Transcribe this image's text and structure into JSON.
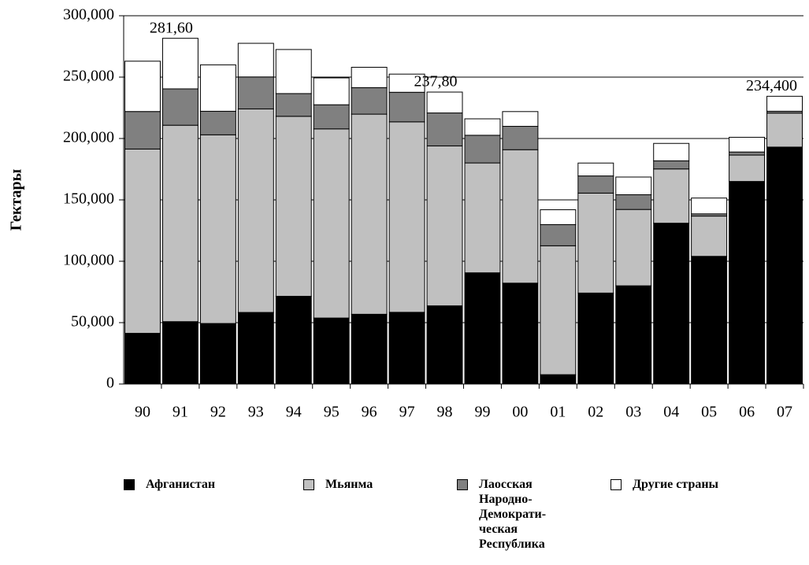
{
  "chart_data": {
    "type": "stacked_bar",
    "y_label": "Гектары",
    "categories": [
      "90",
      "91",
      "92",
      "93",
      "94",
      "95",
      "96",
      "97",
      "98",
      "99",
      "00",
      "01",
      "02",
      "03",
      "04",
      "05",
      "06",
      "07"
    ],
    "series": [
      {
        "name": "Афганистан",
        "color": "#000000",
        "values": [
          41300,
          50800,
          49300,
          58300,
          71470,
          53759,
          56824,
          58416,
          63674,
          90583,
          82171,
          7606,
          74100,
          80000,
          131000,
          104000,
          165000,
          193000
        ]
      },
      {
        "name": "Мьянма",
        "color": "#c0c0c0",
        "values": [
          150100,
          160000,
          153700,
          165800,
          146600,
          154070,
          163000,
          155150,
          130300,
          89500,
          108700,
          105000,
          81400,
          62200,
          44200,
          32800,
          21500,
          27700
        ]
      },
      {
        "name": "Лаосская Народно-Демократи-ческая Республика",
        "color": "#808080",
        "values": [
          30580,
          29625,
          19190,
          26040,
          18520,
          19650,
          21601,
          24082,
          26837,
          22543,
          19052,
          17255,
          14000,
          12000,
          6600,
          1800,
          2500,
          1500
        ]
      },
      {
        "name": "Другие страны",
        "color": "#ffffff",
        "values": [
          41000,
          41200,
          37800,
          27400,
          35900,
          21900,
          16600,
          14800,
          17000,
          13400,
          12000,
          12100,
          10500,
          14400,
          14200,
          12900,
          12000,
          12200
        ]
      }
    ],
    "annotations": [
      {
        "x": "91",
        "value": 281600,
        "label": "281,60"
      },
      {
        "x": "98",
        "value": 237800,
        "label": "237,80"
      },
      {
        "x": "07",
        "value": 234400,
        "label": "234,400"
      }
    ],
    "ylim": [
      0,
      300000
    ],
    "yticks": [
      0,
      {
        "value": 50000,
        "label": "50,000"
      },
      {
        "value": 100000,
        "label": "100,000"
      },
      {
        "value": 150000,
        "label": "150,000"
      },
      {
        "value": 200000,
        "label": "200,000"
      },
      {
        "value": 250000,
        "label": "250,000"
      },
      {
        "value": 300000,
        "label": "300,000"
      }
    ],
    "grid": true,
    "legend": "bottom"
  }
}
